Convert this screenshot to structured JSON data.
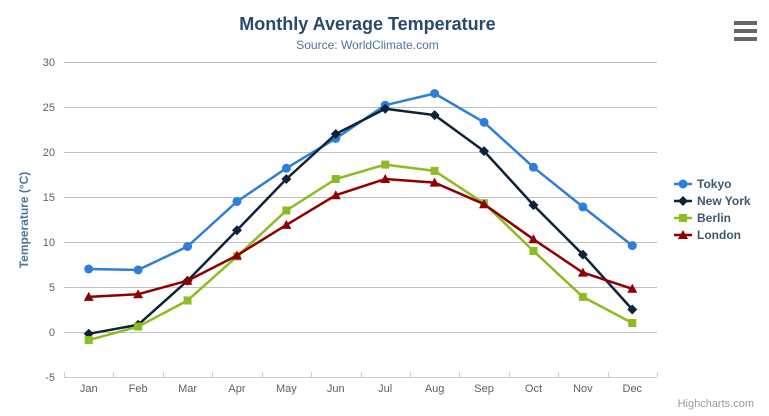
{
  "chart_data": {
    "type": "line",
    "title": "Monthly Average Temperature",
    "subtitle": "Source: WorldClimate.com",
    "xlabel": "",
    "ylabel": "Temperature (°C)",
    "categories": [
      "Jan",
      "Feb",
      "Mar",
      "Apr",
      "May",
      "Jun",
      "Jul",
      "Aug",
      "Sep",
      "Oct",
      "Nov",
      "Dec"
    ],
    "series": [
      {
        "name": "Tokyo",
        "marker": "circle",
        "color": "#2f7ed8",
        "values": [
          7.0,
          6.9,
          9.5,
          14.5,
          18.2,
          21.5,
          25.2,
          26.5,
          23.3,
          18.3,
          13.9,
          9.6
        ]
      },
      {
        "name": "New York",
        "marker": "diamond",
        "color": "#0d233a",
        "values": [
          -0.2,
          0.8,
          5.7,
          11.3,
          17.0,
          22.0,
          24.8,
          24.1,
          20.1,
          14.1,
          8.6,
          2.5
        ]
      },
      {
        "name": "Berlin",
        "marker": "square",
        "color": "#8bbc21",
        "values": [
          -0.9,
          0.6,
          3.5,
          8.4,
          13.5,
          17.0,
          18.6,
          17.9,
          14.3,
          9.0,
          3.9,
          1.0
        ]
      },
      {
        "name": "London",
        "marker": "triangle",
        "color": "#910000",
        "values": [
          3.9,
          4.2,
          5.7,
          8.5,
          11.9,
          15.2,
          17.0,
          16.6,
          14.2,
          10.3,
          6.6,
          4.8
        ]
      }
    ],
    "ylim": [
      -5,
      30
    ],
    "ytick_step": 5,
    "grid": true,
    "legend_position": "right",
    "credits": "Highcharts.com",
    "colors": {
      "title": "#274b6d",
      "subtitle": "#4d759e",
      "axis_title": "#4d759e",
      "axis_label": "#606060",
      "grid": "#c0c0c0",
      "axis_line": "#c0d0e0",
      "legend_text": "#3e576f",
      "credit": "#999999",
      "menu_icon": "#666666"
    }
  }
}
